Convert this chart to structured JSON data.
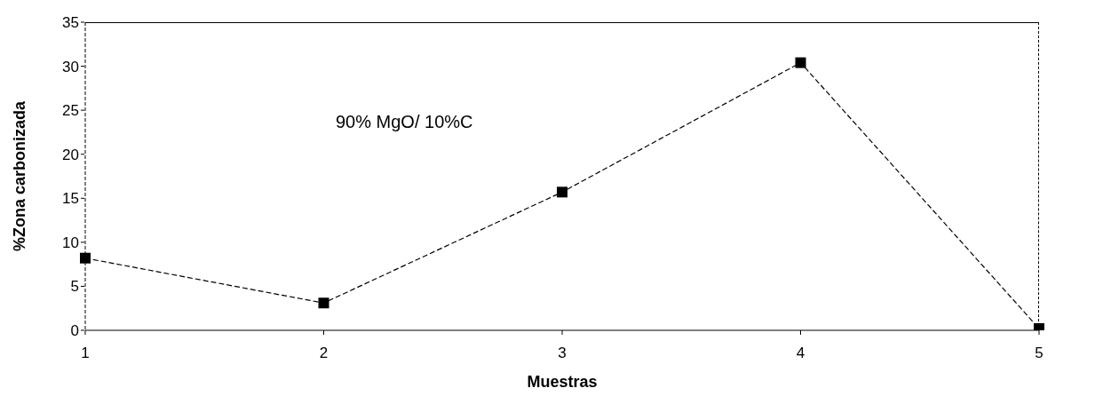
{
  "chart_data": {
    "type": "line",
    "xlabel": "Muestras",
    "ylabel": "%Zona carbonizada",
    "annotations": [
      "90% MgO/ 10%C"
    ],
    "x": [
      1,
      2,
      3,
      4,
      5
    ],
    "series": [
      {
        "color": "#000000",
        "values": [
          8.2,
          3.1,
          15.7,
          30.4,
          0.2
        ]
      }
    ],
    "xlim": [
      1,
      5
    ],
    "xticks": [
      1,
      2,
      3,
      4,
      5
    ],
    "ylim": [
      0,
      35
    ],
    "yticks": [
      0,
      5,
      10,
      15,
      20,
      25,
      30,
      35
    ],
    "grid": false,
    "legend": false,
    "marker": "square",
    "line_style": "dashed"
  }
}
